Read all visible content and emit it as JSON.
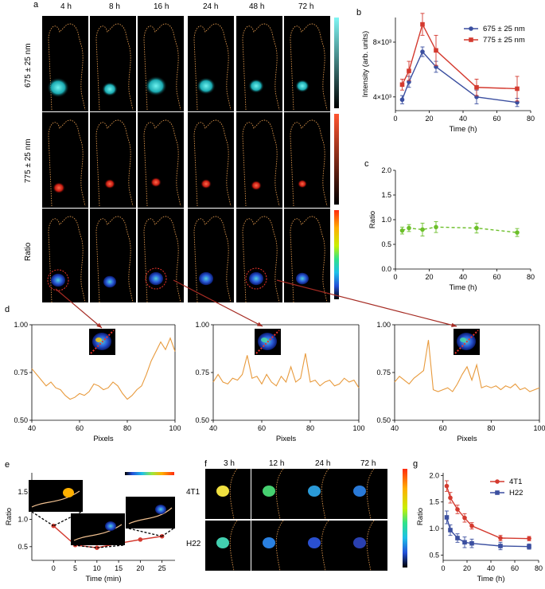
{
  "panel_letters": {
    "a": "a",
    "b": "b",
    "c": "c",
    "d": "d",
    "e": "e",
    "f": "f",
    "g": "g"
  },
  "panel_a": {
    "time_labels": [
      "4 h",
      "8 h",
      "16 h",
      "24 h",
      "48 h",
      "72 h"
    ],
    "row_labels": [
      "675 ± 25 nm",
      "775 ± 25 nm",
      "Ratio"
    ]
  },
  "panel_f": {
    "time_labels": [
      "3 h",
      "12 h",
      "24 h",
      "72 h"
    ],
    "row_labels": [
      "4T1",
      "H22"
    ]
  },
  "chart_data": [
    {
      "id": "b",
      "type": "line",
      "xlabel": "Time (h)",
      "ylabel": "Intensity (arb. units)",
      "xlim": [
        0,
        80
      ],
      "ylim": [
        3000,
        9800
      ],
      "xticks": [
        0,
        20,
        40,
        60,
        80
      ],
      "yticks": [
        4000,
        8000
      ],
      "ytick_labels": [
        "4×10³",
        "8×10³"
      ],
      "legend": "top-right",
      "series": [
        {
          "name": "675 ± 25 nm",
          "color": "#3b4fa0",
          "x": [
            4,
            8,
            16,
            24,
            48,
            72
          ],
          "y": [
            3800,
            5100,
            7300,
            6200,
            4000,
            3600
          ],
          "err": [
            300,
            400,
            350,
            400,
            500,
            300
          ]
        },
        {
          "name": "775 ± 25 nm",
          "color": "#d43a2f",
          "x": [
            4,
            8,
            16,
            24,
            48,
            72
          ],
          "y": [
            4900,
            5900,
            9300,
            7400,
            4700,
            4600
          ],
          "err": [
            400,
            700,
            800,
            1100,
            600,
            900
          ]
        }
      ]
    },
    {
      "id": "c",
      "type": "line",
      "xlabel": "Time (h)",
      "ylabel": "Ratio",
      "xlim": [
        0,
        80
      ],
      "ylim": [
        0,
        2.0
      ],
      "xticks": [
        0,
        20,
        40,
        60,
        80
      ],
      "yticks": [
        0.0,
        0.5,
        1.0,
        1.5,
        2.0
      ],
      "ytick_labels": [
        "0.0",
        "0.5",
        "1.0",
        "1.5",
        "2.0"
      ],
      "series": [
        {
          "name": "",
          "color": "#6cbf2a",
          "x": [
            4,
            8,
            16,
            24,
            48,
            72
          ],
          "y": [
            0.78,
            0.83,
            0.8,
            0.85,
            0.83,
            0.74
          ],
          "err": [
            0.07,
            0.07,
            0.13,
            0.11,
            0.1,
            0.08
          ]
        }
      ]
    },
    {
      "id": "d1",
      "type": "line",
      "xlabel": "Pixels",
      "ylabel": "",
      "xlim": [
        40,
        100
      ],
      "ylim": [
        0.5,
        1.0
      ],
      "xticks": [
        40,
        60,
        80,
        100
      ],
      "yticks": [
        0.5,
        0.75,
        1.0
      ],
      "ytick_labels": [
        "0.50",
        "0.75",
        "1.00"
      ],
      "series": [
        {
          "name": "",
          "color": "#e89a3c",
          "x": [
            40,
            42,
            44,
            46,
            48,
            50,
            52,
            54,
            56,
            58,
            60,
            62,
            64,
            66,
            68,
            70,
            72,
            74,
            76,
            78,
            80,
            82,
            84,
            86,
            88,
            90,
            92,
            94,
            96,
            98,
            100
          ],
          "y": [
            0.77,
            0.74,
            0.71,
            0.68,
            0.7,
            0.67,
            0.66,
            0.63,
            0.61,
            0.62,
            0.64,
            0.63,
            0.65,
            0.69,
            0.68,
            0.66,
            0.67,
            0.7,
            0.68,
            0.64,
            0.61,
            0.63,
            0.66,
            0.68,
            0.74,
            0.81,
            0.86,
            0.91,
            0.87,
            0.93,
            0.86
          ]
        }
      ]
    },
    {
      "id": "d2",
      "type": "line",
      "xlabel": "Pixels",
      "ylabel": "",
      "xlim": [
        40,
        100
      ],
      "ylim": [
        0.5,
        1.0
      ],
      "xticks": [
        40,
        60,
        80,
        100
      ],
      "yticks": [
        0.5,
        0.75,
        1.0
      ],
      "ytick_labels": [
        "0.50",
        "0.75",
        "1.00"
      ],
      "series": [
        {
          "name": "",
          "color": "#e89a3c",
          "x": [
            40,
            42,
            44,
            46,
            48,
            50,
            52,
            54,
            56,
            58,
            60,
            62,
            64,
            66,
            68,
            70,
            72,
            74,
            76,
            78,
            80,
            82,
            84,
            86,
            88,
            90,
            92,
            94,
            96,
            98,
            100
          ],
          "y": [
            0.7,
            0.74,
            0.7,
            0.69,
            0.72,
            0.71,
            0.74,
            0.84,
            0.72,
            0.73,
            0.69,
            0.74,
            0.7,
            0.68,
            0.73,
            0.7,
            0.78,
            0.7,
            0.72,
            0.85,
            0.7,
            0.71,
            0.68,
            0.7,
            0.71,
            0.68,
            0.69,
            0.72,
            0.7,
            0.71,
            0.67
          ]
        }
      ]
    },
    {
      "id": "d3",
      "type": "line",
      "xlabel": "Pixels",
      "ylabel": "",
      "xlim": [
        40,
        100
      ],
      "ylim": [
        0.5,
        1.0
      ],
      "xticks": [
        40,
        60,
        80,
        100
      ],
      "yticks": [
        0.5,
        0.75,
        1.0
      ],
      "ytick_labels": [
        "0.50",
        "0.75",
        "1.00"
      ],
      "series": [
        {
          "name": "",
          "color": "#e89a3c",
          "x": [
            40,
            42,
            44,
            46,
            48,
            50,
            52,
            54,
            56,
            58,
            60,
            62,
            64,
            66,
            68,
            70,
            72,
            74,
            76,
            78,
            80,
            82,
            84,
            86,
            88,
            90,
            92,
            94,
            96,
            98,
            100
          ],
          "y": [
            0.7,
            0.73,
            0.71,
            0.69,
            0.72,
            0.74,
            0.76,
            0.92,
            0.66,
            0.65,
            0.66,
            0.67,
            0.65,
            0.69,
            0.74,
            0.78,
            0.71,
            0.79,
            0.67,
            0.68,
            0.67,
            0.68,
            0.66,
            0.68,
            0.67,
            0.69,
            0.66,
            0.67,
            0.65,
            0.66,
            0.67
          ]
        }
      ]
    },
    {
      "id": "e",
      "type": "line",
      "xlabel": "Time (min)",
      "ylabel": "Ratio",
      "xlim": [
        -5,
        28
      ],
      "ylim": [
        0.25,
        1.85
      ],
      "xticks": [
        0,
        5,
        10,
        15,
        20,
        25
      ],
      "yticks": [
        0.5,
        1.0,
        1.5
      ],
      "ytick_labels": [
        "0.5",
        "1.0",
        "1.5"
      ],
      "series": [
        {
          "name": "",
          "color": "#d43a2f",
          "x": [
            0,
            5,
            10,
            15,
            20,
            25
          ],
          "y": [
            0.88,
            0.53,
            0.48,
            0.56,
            0.63,
            0.69
          ]
        }
      ]
    },
    {
      "id": "g",
      "type": "line",
      "xlabel": "Time (h)",
      "ylabel": "Ratio",
      "xlim": [
        0,
        80
      ],
      "ylim": [
        0.4,
        2.05
      ],
      "xticks": [
        0,
        20,
        40,
        60,
        80
      ],
      "yticks": [
        0.5,
        1.0,
        1.5,
        2.0
      ],
      "ytick_labels": [
        "0.5",
        "1.0",
        "1.5",
        "2.0"
      ],
      "legend": "top-right",
      "series": [
        {
          "name": "4T1",
          "color": "#d43a2f",
          "x": [
            3,
            6,
            12,
            18,
            24,
            48,
            72
          ],
          "y": [
            1.8,
            1.58,
            1.36,
            1.2,
            1.05,
            0.82,
            0.81
          ],
          "err": [
            0.1,
            0.1,
            0.08,
            0.08,
            0.06,
            0.05,
            0.04
          ]
        },
        {
          "name": "H22",
          "color": "#3b4fa0",
          "x": [
            3,
            6,
            12,
            18,
            24,
            48,
            72
          ],
          "y": [
            1.21,
            0.97,
            0.82,
            0.74,
            0.72,
            0.67,
            0.66
          ],
          "err": [
            0.12,
            0.1,
            0.08,
            0.1,
            0.08,
            0.07,
            0.05
          ]
        }
      ]
    }
  ]
}
